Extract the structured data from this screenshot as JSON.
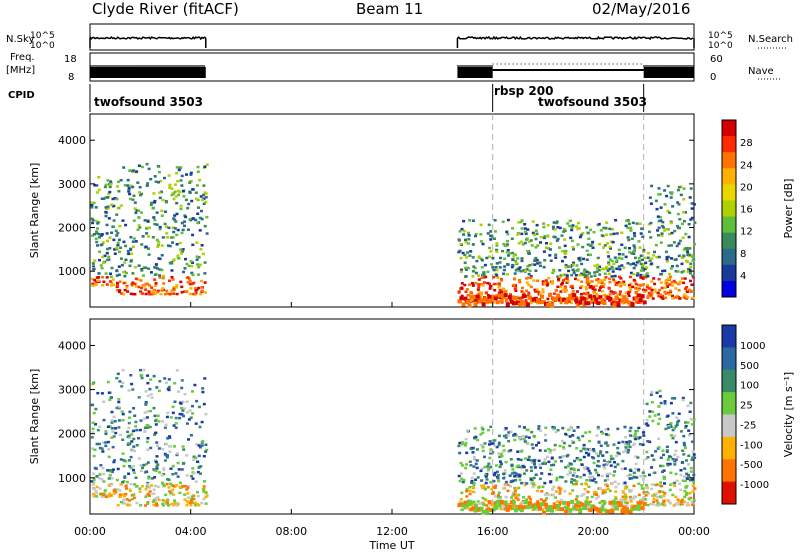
{
  "header": {
    "station": "Clyde River (fitACF)",
    "beam": "Beam 11",
    "date": "02/May/2016"
  },
  "top_panel": {
    "left_label": "N.Sky",
    "right_label": "N.Search",
    "left_ticks": [
      "10^5",
      "10^0"
    ],
    "right_ticks": [
      "10^5",
      "10^0"
    ]
  },
  "freq_panel": {
    "left_label_line1": "Freq.",
    "left_label_line2": "[MHz]",
    "right_label": "Nave",
    "left_ticks": [
      "18",
      "8"
    ],
    "right_ticks": [
      "60",
      "0"
    ]
  },
  "cpid": {
    "label": "CPID",
    "segments": [
      {
        "name": "twofsound 3503",
        "start": 0.0,
        "end": 4.6
      },
      {
        "name": "rbsp 200",
        "start": 16.0,
        "end": 22.0
      },
      {
        "name": "twofsound 3503",
        "start": 16.0,
        "end": 22.0
      }
    ]
  },
  "chart_data": [
    {
      "type": "heatmap",
      "title": "",
      "xlabel": "",
      "ylabel": "Slant Range [km]",
      "xlim": [
        0,
        24
      ],
      "ylim": [
        180,
        4600
      ],
      "yticks": [
        1000,
        2000,
        3000,
        4000
      ],
      "colorbar": {
        "label": "Power [dB]",
        "ticks": [
          "28",
          "24",
          "20",
          "16",
          "12",
          "8",
          "4"
        ],
        "colors": [
          "#d40000",
          "#ff2a00",
          "#ff7300",
          "#ffb000",
          "#e8d800",
          "#b0d000",
          "#5fbf3a",
          "#3a8a5a",
          "#2a6a8a",
          "#1a3a9a",
          "#0000e0"
        ]
      },
      "scatter_regions": [
        {
          "start": 0.0,
          "end": 1.0,
          "rmin": 700,
          "rmax": 3200
        },
        {
          "start": 1.0,
          "end": 4.6,
          "rmin": 500,
          "rmax": 3500
        },
        {
          "start": 14.6,
          "end": 22.0,
          "rmin": 300,
          "rmax": 2200
        },
        {
          "start": 22.0,
          "end": 24.0,
          "rmin": 400,
          "rmax": 3000
        }
      ]
    },
    {
      "type": "heatmap",
      "title": "",
      "xlabel": "Time UT",
      "ylabel": "Slant Range [km]",
      "xlim": [
        0,
        24
      ],
      "ylim": [
        180,
        4600
      ],
      "xticks": [
        "00:00",
        "04:00",
        "08:00",
        "12:00",
        "16:00",
        "20:00",
        "00:00"
      ],
      "yticks": [
        1000,
        2000,
        3000,
        4000
      ],
      "colorbar": {
        "label": "Velocity [m s⁻¹]",
        "ticks": [
          "1000",
          "500",
          "100",
          "25",
          "-25",
          "-100",
          "-500",
          "-1000"
        ],
        "colors": [
          "#1a3aa8",
          "#2a6aa0",
          "#3a8a6a",
          "#6acc3a",
          "#c8c8c8",
          "#ffb000",
          "#ff7300",
          "#e01000"
        ]
      },
      "scatter_regions": [
        {
          "start": 0.0,
          "end": 1.0,
          "rmin": 600,
          "rmax": 3200
        },
        {
          "start": 1.0,
          "end": 4.6,
          "rmin": 400,
          "rmax": 3500
        },
        {
          "start": 14.6,
          "end": 22.0,
          "rmin": 300,
          "rmax": 2200
        },
        {
          "start": 22.0,
          "end": 24.0,
          "rmin": 400,
          "rmax": 3000
        }
      ]
    }
  ]
}
